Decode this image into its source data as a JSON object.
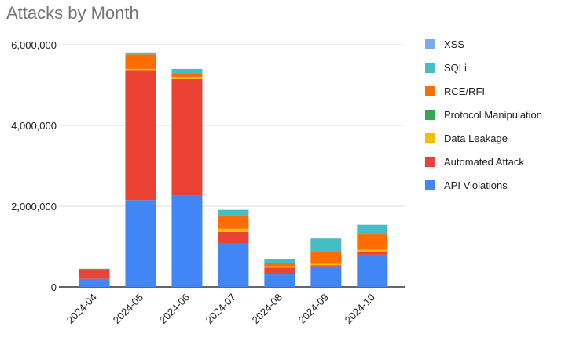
{
  "chart_data": {
    "type": "bar",
    "stacked": true,
    "title": "Attacks by Month",
    "xlabel": "",
    "ylabel": "",
    "ylim": [
      0,
      6000000
    ],
    "yticks": [
      0,
      2000000,
      4000000,
      6000000
    ],
    "ytick_labels": [
      "0",
      "2,000,000",
      "4,000,000",
      "6,000,000"
    ],
    "grid": true,
    "legend_position": "right",
    "categories": [
      "2024-04",
      "2024-05",
      "2024-06",
      "2024-07",
      "2024-08",
      "2024-09",
      "2024-10"
    ],
    "series": [
      {
        "name": "API Violations",
        "color": "#4285f4",
        "values": [
          200000,
          2150000,
          2260000,
          1070000,
          310000,
          510000,
          800000
        ]
      },
      {
        "name": "Automated Attack",
        "color": "#ea4335",
        "values": [
          240000,
          3220000,
          2890000,
          290000,
          170000,
          30000,
          80000
        ]
      },
      {
        "name": "Data Leakage",
        "color": "#fbbc04",
        "values": [
          0,
          30000,
          50000,
          80000,
          30000,
          30000,
          40000
        ]
      },
      {
        "name": "Protocol Manipulation",
        "color": "#34a853",
        "values": [
          10000,
          0,
          0,
          0,
          0,
          0,
          0
        ]
      },
      {
        "name": "RCE/RFI",
        "color": "#ff6d01",
        "values": [
          0,
          360000,
          80000,
          340000,
          90000,
          320000,
          380000
        ]
      },
      {
        "name": "SQLi",
        "color": "#46bdc6",
        "values": [
          0,
          50000,
          120000,
          130000,
          80000,
          310000,
          240000
        ]
      },
      {
        "name": "XSS",
        "color": "#7baaf7",
        "values": [
          0,
          0,
          0,
          0,
          0,
          0,
          0
        ]
      }
    ]
  }
}
